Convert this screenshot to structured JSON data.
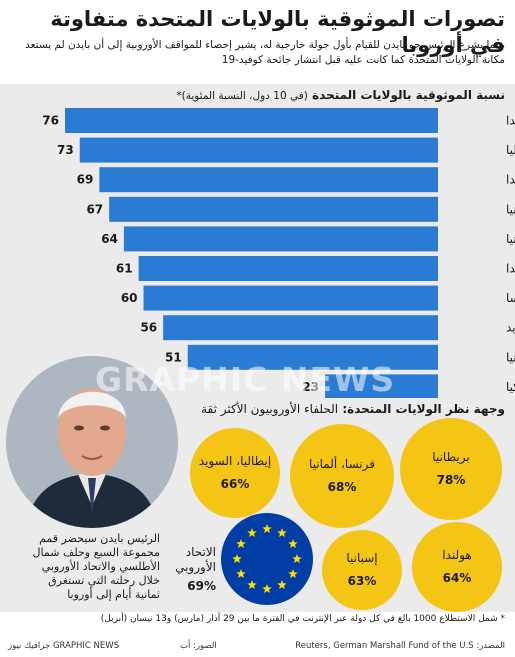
{
  "title": "تصورات الموثوقية بالولايات المتحدة متفاوتة في أوروبا",
  "subtitle": "بينما يشرع الرئيس جو بايدن للقيام بأول جولة خارجية له، يشير إحصاء للمواقف الأوروبية إلى أن بايدن لم يستعد مكانة الولايات المتحدة كما كانت عليه قبل انتشار جائحة كوفيد-19",
  "chart_heading": "نسبة الموثوقية بالولايات المتحدة",
  "chart_note": "(في 10 دول، النسبة المئوية)*",
  "chart_data": {
    "type": "bar",
    "orientation": "horizontal",
    "title": "نسبة الموثوقية بالولايات المتحدة",
    "categories": [
      "بولندا",
      "إيطاليا",
      "كندا",
      "بريطانيا",
      "إسبانيا",
      "هولندا",
      "فرنسا",
      "السويد",
      "ألمانيا",
      "تركيا"
    ],
    "values": [
      76,
      73,
      69,
      67,
      64,
      61,
      60,
      56,
      51,
      23
    ],
    "xlim": [
      0,
      80
    ],
    "bar_color": "#2a7bd3",
    "grid": false
  },
  "section2_title": "وجهة نظر الولايات المتحدة:",
  "section2_rest": " الحلفاء الأوروبيون الأكثر ثقة",
  "allies": [
    {
      "name": "بريطانيا",
      "pct": "78%"
    },
    {
      "name": "فرنسا، ألمانيا",
      "pct": "68%"
    },
    {
      "name": "إيطاليا، السويد",
      "pct": "66%"
    },
    {
      "name": "هولندا",
      "pct": "64%"
    },
    {
      "name": "إسبانيا",
      "pct": "63%"
    }
  ],
  "eu": {
    "name": "الاتحاد الأوروبي",
    "pct": "69%"
  },
  "caption": "الرئيس بايدن سيحضر قمم مجموعة السبع وحلف شمال الأطلسي والاتحاد الأوروبي خلال رحلته التي تستغرق ثمانية أيام إلى أوروبا",
  "footnote": "* شمل الاستطلاع 1000 بالغ في كل دولة عبر الإنترنت في الفترة ما بين 29 آذار (مارس) و13 نيسان (أبريل)",
  "source_label": "المصدر:",
  "source": "Reuters, German Marshall Fund of the U.S",
  "photo_label": "الصور: أب",
  "credit": "GRAPHIC NEWS جرافيك نيوز",
  "watermark": "GRAPHIC NEWS",
  "colors": {
    "bar": "#2a7bd3",
    "ally_circle": "#f5c516",
    "eu_blue": "#003da5",
    "eu_star": "#ffdd00",
    "panel": "#ebebeb"
  }
}
